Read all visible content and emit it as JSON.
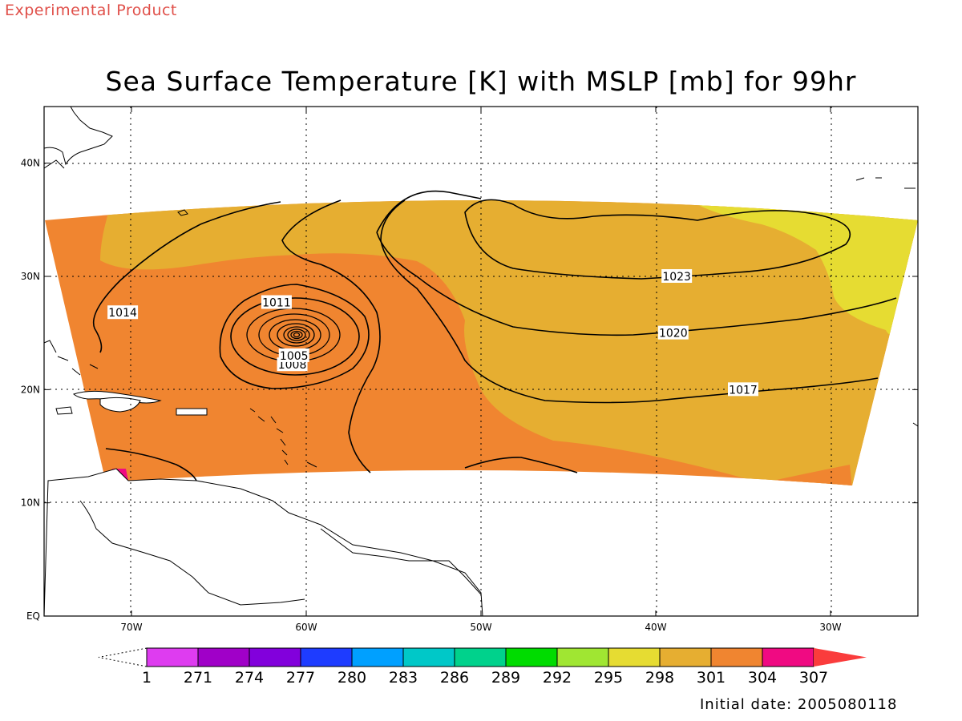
{
  "header": {
    "product_label": "Experimental Product",
    "title": "Sea Surface Temperature [K] with MSLP [mb] for 99hr"
  },
  "map": {
    "lon_range": [
      -75,
      -25
    ],
    "lat_range": [
      0,
      45
    ],
    "lon_ticks": [
      {
        "value": -70,
        "label": "70W"
      },
      {
        "value": -60,
        "label": "60W"
      },
      {
        "value": -50,
        "label": "50W"
      },
      {
        "value": -40,
        "label": "40W"
      },
      {
        "value": -30,
        "label": "30W"
      }
    ],
    "lat_ticks": [
      {
        "value": 0,
        "label": "EQ"
      },
      {
        "value": 10,
        "label": "10N"
      },
      {
        "value": 20,
        "label": "20N"
      },
      {
        "value": 30,
        "label": "30N"
      },
      {
        "value": 40,
        "label": "40N"
      }
    ],
    "grid": true,
    "colors": {
      "sst_298_301": "#e6ae31",
      "sst_301_304": "#f08530",
      "sst_295_298": "#e6dc32",
      "sst_304_307": "#f00a82"
    },
    "isobar_labels": [
      {
        "text": "1023",
        "lon": -38.8,
        "lat": 30.0
      },
      {
        "text": "1020",
        "lon": -39.0,
        "lat": 25.0
      },
      {
        "text": "1017",
        "lon": -35.0,
        "lat": 20.0
      },
      {
        "text": "1014",
        "lon": -70.5,
        "lat": 26.8
      },
      {
        "text": "1011",
        "lon": -61.7,
        "lat": 27.7
      },
      {
        "text": "1008",
        "lon": -60.8,
        "lat": 22.2
      },
      {
        "text": "1005",
        "lon": -60.7,
        "lat": 23.0
      }
    ]
  },
  "colorbar": {
    "colors": [
      "#de3cf0",
      "#a000c8",
      "#8200dc",
      "#1e3cff",
      "#00a0ff",
      "#00c8c8",
      "#00d28c",
      "#00dc00",
      "#a0e632",
      "#e6dc32",
      "#e6ae31",
      "#f08530",
      "#f00a82"
    ],
    "end_color": "#fa3c3c",
    "labels": [
      "1",
      "271",
      "274",
      "277",
      "280",
      "283",
      "286",
      "289",
      "292",
      "295",
      "298",
      "301",
      "304",
      "307"
    ]
  },
  "footer": {
    "initial_date": "Initial date: 2005080118"
  }
}
